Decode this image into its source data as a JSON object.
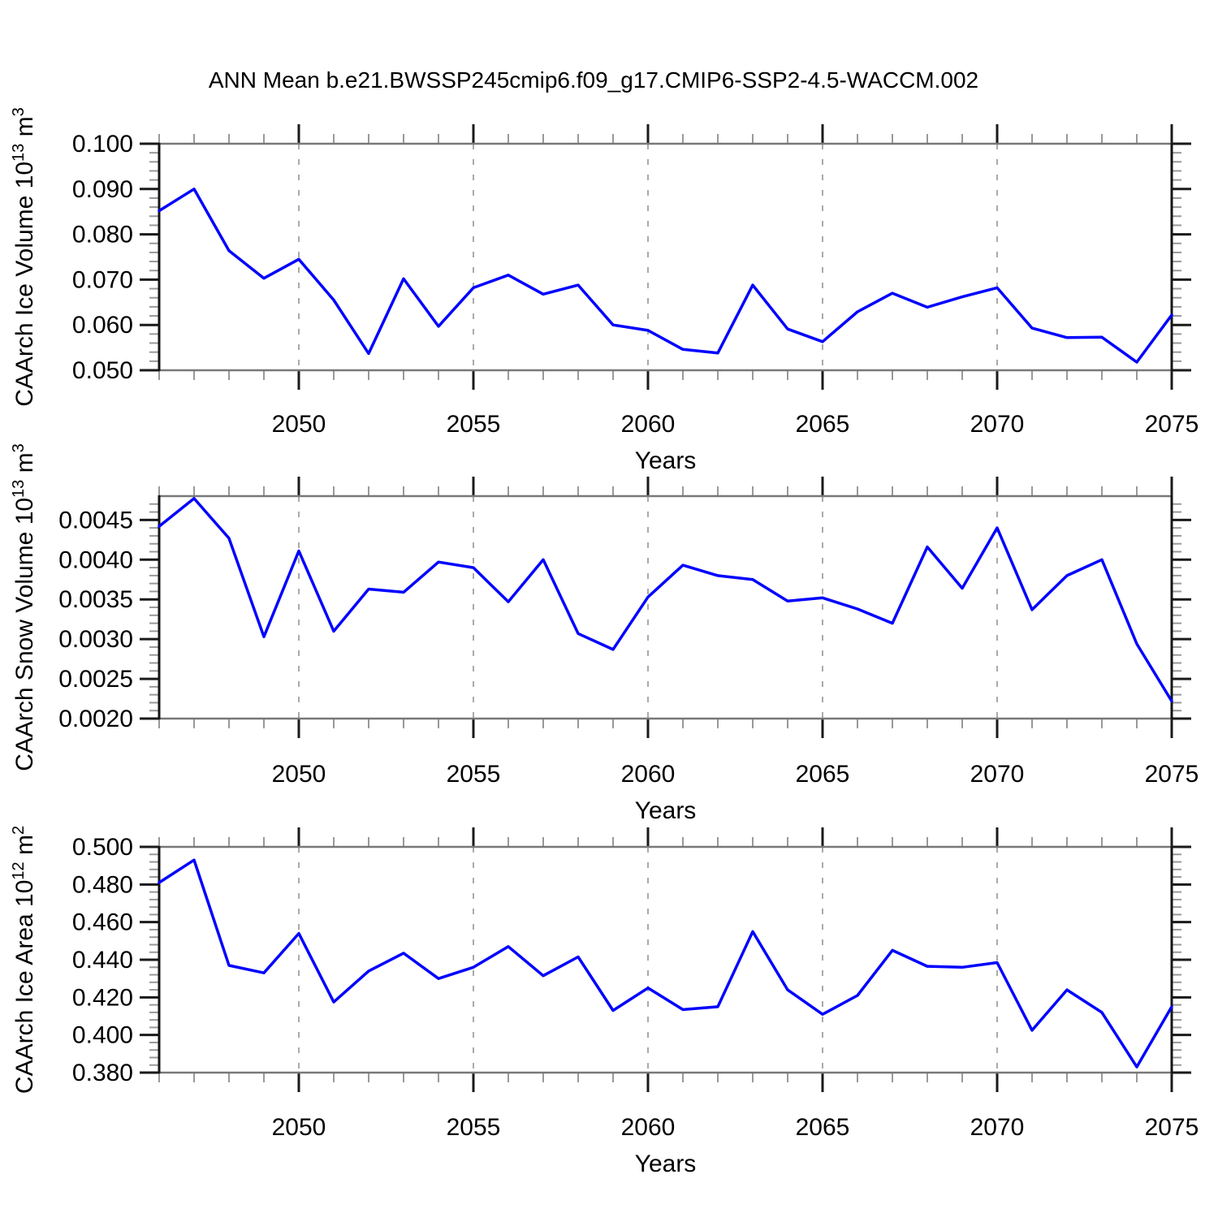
{
  "title": "ANN Mean b.e21.BWSSP245cmip6.f09_g17.CMIP6-SSP2-4.5-WACCM.002",
  "colors": {
    "line": "#0000ff",
    "grid": "#aaaaaa",
    "box_horizontal": "#787878",
    "box_vertical": "#151515",
    "tick_major": "#1a1a1a",
    "tick_minor": "#999999",
    "text": "#000000",
    "background": "#ffffff"
  },
  "x_axis": {
    "min": 2046,
    "max": 2075,
    "minor_step": 1,
    "tick_values": [
      2050,
      2055,
      2060,
      2065,
      2070,
      2075
    ],
    "tick_labels": [
      "2050",
      "2055",
      "2060",
      "2065",
      "2070",
      "2075"
    ],
    "grid_values": [
      2050,
      2055,
      2060,
      2065,
      2070
    ],
    "label": "Years"
  },
  "chart_data": [
    {
      "type": "line",
      "id": "ice-volume",
      "ylabel": "CAArch Ice Volume 10^13 m^3",
      "ylabel_parts": [
        {
          "text": "CAArch Ice Volume 10",
          "sup": false
        },
        {
          "text": "13",
          "sup": true
        },
        {
          "text": " m",
          "sup": false
        },
        {
          "text": "3",
          "sup": true
        }
      ],
      "xlabel": "Years",
      "ylim": [
        0.05,
        0.1
      ],
      "ytick_values": [
        0.05,
        0.06,
        0.07,
        0.08,
        0.09,
        0.1
      ],
      "ytick_labels": [
        "0.050",
        "0.060",
        "0.070",
        "0.080",
        "0.090",
        "0.100"
      ],
      "ytick_minor_step": 0.002,
      "x": [
        2046,
        2047,
        2048,
        2049,
        2050,
        2051,
        2052,
        2053,
        2054,
        2055,
        2056,
        2057,
        2058,
        2059,
        2060,
        2061,
        2062,
        2063,
        2064,
        2065,
        2066,
        2067,
        2068,
        2069,
        2070,
        2071,
        2072,
        2073,
        2074,
        2075
      ],
      "values": [
        0.0852,
        0.09,
        0.0764,
        0.0703,
        0.0745,
        0.0655,
        0.0537,
        0.0702,
        0.0597,
        0.0682,
        0.071,
        0.0668,
        0.0688,
        0.06,
        0.0588,
        0.0546,
        0.0538,
        0.0688,
        0.0591,
        0.0563,
        0.0629,
        0.067,
        0.0639,
        0.0662,
        0.0682,
        0.0593,
        0.0572,
        0.0573,
        0.0518,
        0.0622
      ]
    },
    {
      "type": "line",
      "id": "snow-volume",
      "ylabel": "CAArch Snow Volume 10^13 m^3",
      "ylabel_parts": [
        {
          "text": "CAArch Snow Volume 10",
          "sup": false
        },
        {
          "text": "13",
          "sup": true
        },
        {
          "text": " m",
          "sup": false
        },
        {
          "text": "3",
          "sup": true
        }
      ],
      "xlabel": "Years",
      "ylim": [
        0.002,
        0.0048
      ],
      "ytick_values": [
        0.002,
        0.0025,
        0.003,
        0.0035,
        0.004,
        0.0045
      ],
      "ytick_labels": [
        "0.0020",
        "0.0025",
        "0.0030",
        "0.0035",
        "0.0040",
        "0.0045"
      ],
      "ytick_minor_step": 0.0001,
      "x": [
        2046,
        2047,
        2048,
        2049,
        2050,
        2051,
        2052,
        2053,
        2054,
        2055,
        2056,
        2057,
        2058,
        2059,
        2060,
        2061,
        2062,
        2063,
        2064,
        2065,
        2066,
        2067,
        2068,
        2069,
        2070,
        2071,
        2072,
        2073,
        2074,
        2075
      ],
      "values": [
        0.00442,
        0.00477,
        0.00427,
        0.00303,
        0.00411,
        0.0031,
        0.00363,
        0.00359,
        0.00397,
        0.0039,
        0.00347,
        0.004,
        0.00307,
        0.00287,
        0.00353,
        0.00393,
        0.0038,
        0.00375,
        0.00348,
        0.00352,
        0.00338,
        0.0032,
        0.00416,
        0.00364,
        0.0044,
        0.00337,
        0.0038,
        0.004,
        0.00294,
        0.00222
      ]
    },
    {
      "type": "line",
      "id": "ice-area",
      "ylabel": "CAArch Ice Area 10^12 m^2",
      "ylabel_parts": [
        {
          "text": "CAArch Ice Area 10",
          "sup": false
        },
        {
          "text": "12",
          "sup": true
        },
        {
          "text": " m",
          "sup": false
        },
        {
          "text": "2",
          "sup": true
        }
      ],
      "xlabel": "Years",
      "ylim": [
        0.38,
        0.5
      ],
      "ytick_values": [
        0.38,
        0.4,
        0.42,
        0.44,
        0.46,
        0.48,
        0.5
      ],
      "ytick_labels": [
        "0.380",
        "0.400",
        "0.420",
        "0.440",
        "0.460",
        "0.480",
        "0.500"
      ],
      "ytick_minor_step": 0.004,
      "x": [
        2046,
        2047,
        2048,
        2049,
        2050,
        2051,
        2052,
        2053,
        2054,
        2055,
        2056,
        2057,
        2058,
        2059,
        2060,
        2061,
        2062,
        2063,
        2064,
        2065,
        2066,
        2067,
        2068,
        2069,
        2070,
        2071,
        2072,
        2073,
        2074,
        2075
      ],
      "values": [
        0.481,
        0.493,
        0.437,
        0.433,
        0.454,
        0.4175,
        0.434,
        0.4435,
        0.43,
        0.436,
        0.447,
        0.4315,
        0.4415,
        0.413,
        0.425,
        0.4135,
        0.415,
        0.455,
        0.424,
        0.411,
        0.421,
        0.445,
        0.4365,
        0.436,
        0.4385,
        0.4025,
        0.424,
        0.412,
        0.383,
        0.415
      ]
    }
  ]
}
